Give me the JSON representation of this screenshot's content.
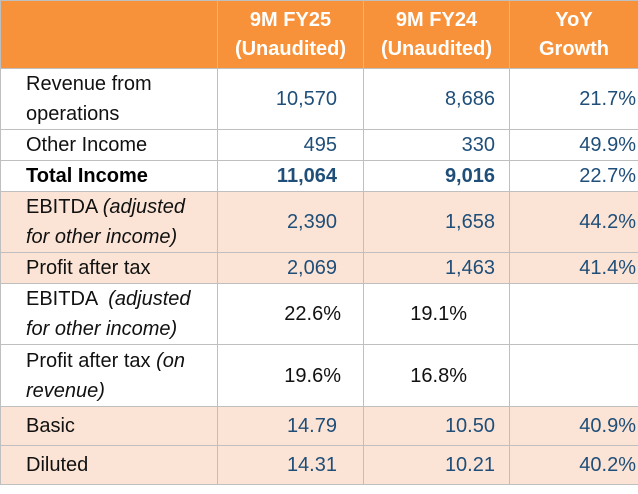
{
  "header": {
    "col1": [
      "9M FY25",
      "(Unaudited)"
    ],
    "col2": [
      "9M FY24",
      "(Unaudited)"
    ],
    "col3": [
      "YoY",
      "Growth"
    ]
  },
  "rows": {
    "revenue": {
      "label": [
        "Revenue from",
        "operations"
      ],
      "fy25": "10,570",
      "fy24": "8,686",
      "yoy": "21.7%"
    },
    "other_income": {
      "label": "Other Income",
      "fy25": "495",
      "fy24": "330",
      "yoy": "49.9%"
    },
    "total_income": {
      "label": "Total Income",
      "fy25": "11,064",
      "fy24": "9,016",
      "yoy": "22.7%"
    },
    "ebitda": {
      "label_main": "EBITDA ",
      "label_ital_1": "(adjusted",
      "label_ital_2": "for other income)",
      "fy25": "2,390",
      "fy24": "1,658",
      "yoy": "44.2%"
    },
    "pat": {
      "label": "Profit after tax",
      "fy25": "2,069",
      "fy24": "1,463",
      "yoy": "41.4%"
    },
    "ebitda_margin": {
      "label_main": "EBITDA  ",
      "label_ital_1": "(adjusted",
      "label_ital_2": "for other income)",
      "fy25": "22.6%",
      "fy24": "19.1%"
    },
    "pat_margin": {
      "label_main": "Profit after tax ",
      "label_ital_1": "(on",
      "label_ital_2": "revenue)",
      "fy25": "19.6%",
      "fy24": "16.8%"
    },
    "eps_basic": {
      "label": "Basic",
      "fy25": "14.79",
      "fy24": "10.50",
      "yoy": "40.9%"
    },
    "eps_diluted": {
      "label": "Diluted",
      "fy25": "14.31",
      "fy24": "10.21",
      "yoy": "40.2%"
    }
  },
  "colors": {
    "header_bg": "#f7923b",
    "highlight_bg": "#fbe4d5",
    "number_text": "#1f4e79",
    "border": "#bfbfbf"
  }
}
